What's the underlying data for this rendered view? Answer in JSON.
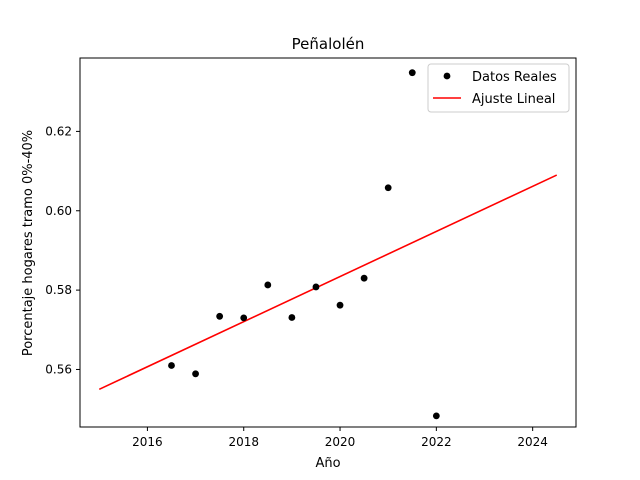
{
  "chart_data": {
    "type": "scatter",
    "title": "Peñalolén",
    "xlabel": "Año",
    "ylabel": "Porcentaje hogares tramo 0%-40%",
    "xlim": [
      2014.6,
      2024.9
    ],
    "ylim": [
      0.5455,
      0.6385
    ],
    "x_ticks": [
      2016,
      2018,
      2020,
      2022,
      2024
    ],
    "y_ticks": [
      0.56,
      0.58,
      0.6,
      0.62
    ],
    "x_tick_labels": [
      "2016",
      "2018",
      "2020",
      "2022",
      "2024"
    ],
    "y_tick_labels": [
      "0.56",
      "0.58",
      "0.60",
      "0.62"
    ],
    "grid": false,
    "legend_position": "top-right",
    "series": [
      {
        "name": "Datos Reales",
        "kind": "scatter",
        "color": "#000000",
        "points": [
          {
            "x": 2016.5,
            "y": 0.561
          },
          {
            "x": 2017.0,
            "y": 0.5589
          },
          {
            "x": 2017.5,
            "y": 0.5734
          },
          {
            "x": 2018.0,
            "y": 0.573
          },
          {
            "x": 2018.5,
            "y": 0.5813
          },
          {
            "x": 2019.0,
            "y": 0.5731
          },
          {
            "x": 2019.5,
            "y": 0.5808
          },
          {
            "x": 2020.0,
            "y": 0.5762
          },
          {
            "x": 2020.5,
            "y": 0.583
          },
          {
            "x": 2021.0,
            "y": 0.6058
          },
          {
            "x": 2021.5,
            "y": 0.6348
          },
          {
            "x": 2022.0,
            "y": 0.5483
          }
        ]
      },
      {
        "name": "Ajuste Lineal",
        "kind": "line",
        "color": "#ff0000",
        "points": [
          {
            "x": 2015.0,
            "y": 0.555
          },
          {
            "x": 2024.5,
            "y": 0.609
          }
        ]
      }
    ]
  }
}
